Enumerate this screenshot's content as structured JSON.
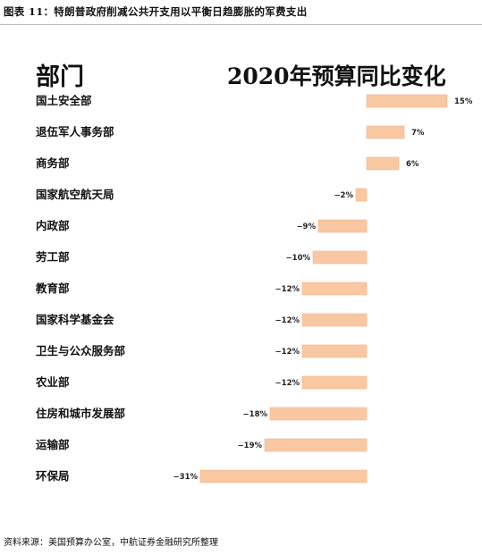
{
  "figure_title": "图表 11：特朗普政府削减公共开支用以平衡日趋膨胀的军费支出",
  "source_note": "资料来源：美国预算办公室，中航证券金融研究所整理",
  "colors": {
    "bar": "#f9c8a2",
    "bar_stroke": "#f2b48a",
    "rule": "#bdbdbd"
  },
  "chart_data": {
    "type": "bar",
    "orientation": "horizontal",
    "category_header": "部门",
    "value_header": "2020年预算同比变化",
    "unit": "%",
    "categories": [
      "国土安全部",
      "退伍军人事务部",
      "商务部",
      "国家航空航天局",
      "内政部",
      "劳工部",
      "教育部",
      "国家科学基金会",
      "卫生与公众服务部",
      "农业部",
      "住房和城市发展部",
      "运输部",
      "环保局"
    ],
    "values": [
      15,
      7,
      6,
      -2,
      -9,
      -10,
      -12,
      -12,
      -12,
      -12,
      -18,
      -19,
      -31
    ],
    "data_labels": [
      "15%",
      "7%",
      "6%",
      "−2%",
      "−9%",
      "−10%",
      "−12%",
      "−12%",
      "−12%",
      "−12%",
      "−18%",
      "−19%",
      "−31%"
    ]
  }
}
